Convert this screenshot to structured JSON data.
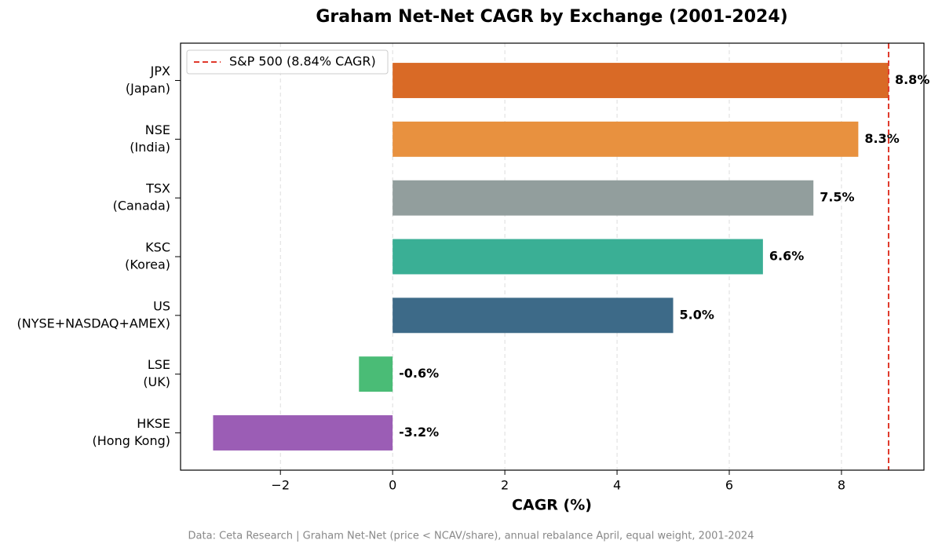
{
  "chart_data": {
    "type": "barh",
    "title": "Graham Net-Net CAGR by Exchange (2001-2024)",
    "xlabel": "CAGR (%)",
    "footnote": "Data: Ceta Research | Graham Net-Net (price < NCAV/share), annual rebalance April, equal weight, 2001-2024",
    "categories": [
      [
        "JPX",
        "(Japan)"
      ],
      [
        "NSE",
        "(India)"
      ],
      [
        "TSX",
        "(Canada)"
      ],
      [
        "KSC",
        "(Korea)"
      ],
      [
        "US",
        "(NYSE+NASDAQ+AMEX)"
      ],
      [
        "LSE",
        "(UK)"
      ],
      [
        "HKSE",
        "(Hong Kong)"
      ]
    ],
    "values": [
      8.84,
      8.3,
      7.5,
      6.6,
      5.0,
      -0.6,
      -3.2
    ],
    "value_labels": [
      "8.8%",
      "8.3%",
      "7.5%",
      "6.6%",
      "5.0%",
      "-0.6%",
      "-3.2%"
    ],
    "colors": [
      "#d96a26",
      "#e8913f",
      "#929e9d",
      "#3aaf95",
      "#3d6a88",
      "#4abc76",
      "#9b5db5"
    ],
    "reference_line": {
      "value": 8.84,
      "label": "S&P 500 (8.84% CAGR)",
      "color": "#e0392b"
    },
    "legend": "upper left",
    "xlim": [
      -3.78,
      9.47
    ],
    "xticks": [
      {
        "value": -2,
        "label": "−2"
      },
      0,
      2,
      4,
      6,
      8
    ],
    "grid": true
  }
}
